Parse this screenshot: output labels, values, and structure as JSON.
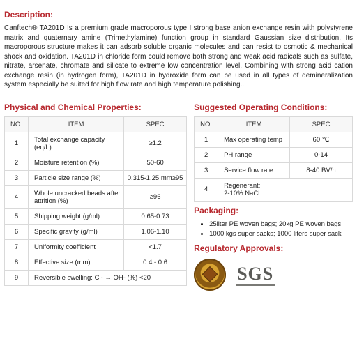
{
  "description": {
    "title": "Description:",
    "text": "Canftech® TA201D Is a premium grade macroporous type I strong base anion exchange resin with polystyrene matrix and quaternary amine (Trimethylamine) function group in standard Gaussian size distribution. Its macroporous structure makes it can adsorb soluble organic molecules and can resist to osmotic & mechanical shock and oxidation. TA201D in chloride form could remove both strong and weak acid radicals such as sulfate, nitrate, arsenate, chromate and silicate to extreme low concentration level. Combining with strong acid cation exchange resin (in hydrogen form), TA201D in hydroxide form can be used in all types of demineralization system especially be suited for high flow rate and high temperature polishing.."
  },
  "propsTable": {
    "title": "Physical and Chemical Properties:",
    "headers": {
      "no": "NO.",
      "item": "ITEM",
      "spec": "SPEC"
    },
    "rows": [
      {
        "no": "1",
        "item": "Total exchange capacity (eq/L)",
        "spec": "≥1.2"
      },
      {
        "no": "2",
        "item": "Moisture retention (%)",
        "spec": "50-60"
      },
      {
        "no": "3",
        "item": "Particle size range (%)",
        "spec": "0.315-1.25 mm≥95"
      },
      {
        "no": "4",
        "item": "Whole uncracked beads after attrition (%)",
        "spec": "≥96"
      },
      {
        "no": "5",
        "item": "Shipping weight (g/ml)",
        "spec": "0.65-0.73"
      },
      {
        "no": "6",
        "item": "Specific gravity (g/ml)",
        "spec": "1.06-1.10"
      },
      {
        "no": "7",
        "item": "Uniformity coefficient",
        "spec": "<1.7"
      },
      {
        "no": "8",
        "item": "Effective size (mm)",
        "spec": "0.4 - 0.6"
      },
      {
        "no": "9",
        "item": "Reversible swelling:  Cl- → OH- (%) <20",
        "spec": ""
      }
    ]
  },
  "condTable": {
    "title": "Suggested Operating Conditions:",
    "headers": {
      "no": "NO.",
      "item": "ITEM",
      "spec": "SPEC"
    },
    "rows": [
      {
        "no": "1",
        "item": "Max operating temp",
        "spec": "60 ℃"
      },
      {
        "no": "2",
        "item": "PH range",
        "spec": "0-14"
      },
      {
        "no": "3",
        "item": "Service flow rate",
        "spec": "8-40 BV/h"
      },
      {
        "no": "4",
        "item": "Regenerant:\n2-10% NaCl",
        "spec": ""
      }
    ]
  },
  "packaging": {
    "title": "Packaging:",
    "items": [
      "25liter PE woven bags; 20kg PE woven bags",
      "1000 kgs super sacks; 1000 liters super sack"
    ]
  },
  "regulatory": {
    "title": "Regulatory Approvals:",
    "sgs": "SGS"
  },
  "style": {
    "accent": "#b8292f",
    "border": "#d9d9d9",
    "text": "#222222",
    "bg": "#ffffff"
  }
}
